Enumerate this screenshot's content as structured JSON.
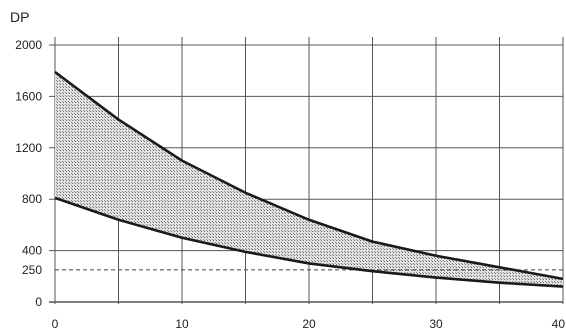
{
  "chart_data": {
    "type": "area",
    "title": "",
    "xlabel": "",
    "ylabel": "DP",
    "xlim": [
      0,
      40
    ],
    "ylim": [
      0,
      2000
    ],
    "grid": true,
    "x_ticks": [
      {
        "value": 0,
        "label": "0"
      },
      {
        "value": 10,
        "label": "10"
      },
      {
        "value": 20,
        "label": "20"
      },
      {
        "value": 30,
        "label": "30"
      },
      {
        "value": 40,
        "label": "40"
      }
    ],
    "x_gridlines": [
      0,
      5,
      10,
      15,
      20,
      25,
      30,
      35,
      40
    ],
    "y_ticks": [
      {
        "value": 0,
        "label": "0"
      },
      {
        "value": 250,
        "label": "250"
      },
      {
        "value": 400,
        "label": "400"
      },
      {
        "value": 800,
        "label": "800"
      },
      {
        "value": 1200,
        "label": "1200"
      },
      {
        "value": 1600,
        "label": "1600"
      },
      {
        "value": 2000,
        "label": "2000"
      }
    ],
    "y_gridlines": [
      0,
      400,
      800,
      1200,
      1600,
      2000
    ],
    "reference_line": {
      "y": 250,
      "style": "dashed"
    },
    "series": [
      {
        "role": "upper",
        "x": [
          0,
          5,
          10,
          15,
          20,
          25,
          30,
          35,
          40
        ],
        "y": [
          1790,
          1420,
          1100,
          850,
          640,
          470,
          360,
          270,
          180
        ]
      },
      {
        "role": "lower",
        "x": [
          0,
          5,
          10,
          15,
          20,
          25,
          30,
          35,
          40
        ],
        "y": [
          810,
          640,
          500,
          390,
          300,
          240,
          190,
          150,
          120
        ]
      }
    ],
    "colors": {
      "curve": "#1a1a1a",
      "grid": "#555555",
      "band": "#b0b0b0",
      "reference": "#444444"
    }
  }
}
